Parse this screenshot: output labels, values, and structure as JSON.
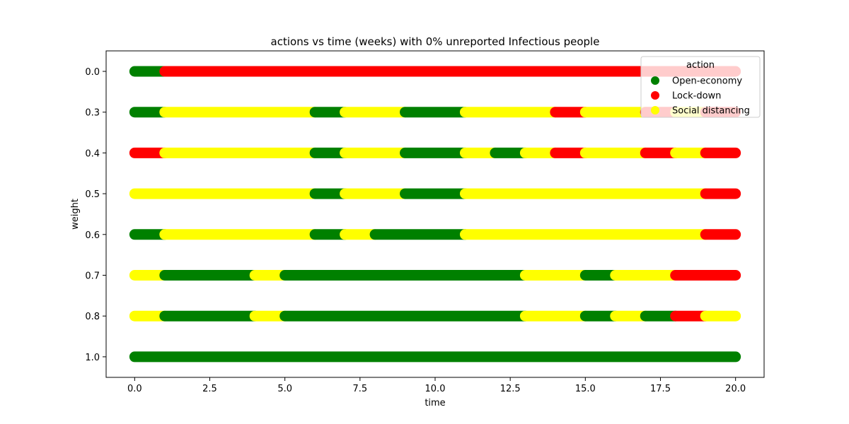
{
  "chart_data": {
    "type": "scatter",
    "title": "actions vs time (weeks) with 0% unreported Infectious people",
    "xlabel": "time",
    "ylabel": "weight",
    "xlim": [
      -0.95,
      20.95
    ],
    "x_ticks": [
      0.0,
      2.5,
      5.0,
      7.5,
      10.0,
      12.5,
      15.0,
      17.5,
      20.0
    ],
    "x_tick_labels": [
      "0.0",
      "2.5",
      "5.0",
      "7.5",
      "10.0",
      "12.5",
      "15.0",
      "17.5",
      "20.0"
    ],
    "y_categories": [
      "0.0",
      "0.3",
      "0.4",
      "0.5",
      "0.6",
      "0.7",
      "0.8",
      "1.0"
    ],
    "grid": false,
    "legend": {
      "title": "action",
      "placement": "top-right",
      "entries": [
        {
          "name": "Open-economy",
          "color": "#008000"
        },
        {
          "name": "Lock-down",
          "color": "#ff0000"
        },
        {
          "name": "Social distancing",
          "color": "#ffff00"
        }
      ]
    },
    "series": [
      {
        "name": "Open-economy",
        "color": "#008000"
      },
      {
        "name": "Lock-down",
        "color": "#ff0000"
      },
      {
        "name": "Social distancing",
        "color": "#ffff00"
      }
    ],
    "segments": [
      {
        "weight": "0.0",
        "action": "Open-economy",
        "x_start": 0,
        "x_end": 1
      },
      {
        "weight": "0.0",
        "action": "Lock-down",
        "x_start": 1,
        "x_end": 20
      },
      {
        "weight": "0.3",
        "action": "Open-economy",
        "x_start": 0,
        "x_end": 1
      },
      {
        "weight": "0.3",
        "action": "Social distancing",
        "x_start": 1,
        "x_end": 6
      },
      {
        "weight": "0.3",
        "action": "Open-economy",
        "x_start": 6,
        "x_end": 7
      },
      {
        "weight": "0.3",
        "action": "Social distancing",
        "x_start": 7,
        "x_end": 9
      },
      {
        "weight": "0.3",
        "action": "Open-economy",
        "x_start": 9,
        "x_end": 11
      },
      {
        "weight": "0.3",
        "action": "Social distancing",
        "x_start": 11,
        "x_end": 14
      },
      {
        "weight": "0.3",
        "action": "Lock-down",
        "x_start": 14,
        "x_end": 15
      },
      {
        "weight": "0.3",
        "action": "Social distancing",
        "x_start": 15,
        "x_end": 17
      },
      {
        "weight": "0.3",
        "action": "Lock-down",
        "x_start": 17,
        "x_end": 18
      },
      {
        "weight": "0.3",
        "action": "Social distancing",
        "x_start": 18,
        "x_end": 19
      },
      {
        "weight": "0.3",
        "action": "Lock-down",
        "x_start": 19,
        "x_end": 20
      },
      {
        "weight": "0.4",
        "action": "Lock-down",
        "x_start": 0,
        "x_end": 1
      },
      {
        "weight": "0.4",
        "action": "Social distancing",
        "x_start": 1,
        "x_end": 6
      },
      {
        "weight": "0.4",
        "action": "Open-economy",
        "x_start": 6,
        "x_end": 7
      },
      {
        "weight": "0.4",
        "action": "Social distancing",
        "x_start": 7,
        "x_end": 9
      },
      {
        "weight": "0.4",
        "action": "Open-economy",
        "x_start": 9,
        "x_end": 11
      },
      {
        "weight": "0.4",
        "action": "Social distancing",
        "x_start": 11,
        "x_end": 12
      },
      {
        "weight": "0.4",
        "action": "Open-economy",
        "x_start": 12,
        "x_end": 13
      },
      {
        "weight": "0.4",
        "action": "Social distancing",
        "x_start": 13,
        "x_end": 14
      },
      {
        "weight": "0.4",
        "action": "Lock-down",
        "x_start": 14,
        "x_end": 15
      },
      {
        "weight": "0.4",
        "action": "Social distancing",
        "x_start": 15,
        "x_end": 17
      },
      {
        "weight": "0.4",
        "action": "Lock-down",
        "x_start": 17,
        "x_end": 18
      },
      {
        "weight": "0.4",
        "action": "Social distancing",
        "x_start": 18,
        "x_end": 19
      },
      {
        "weight": "0.4",
        "action": "Lock-down",
        "x_start": 19,
        "x_end": 20
      },
      {
        "weight": "0.5",
        "action": "Social distancing",
        "x_start": 0,
        "x_end": 6
      },
      {
        "weight": "0.5",
        "action": "Open-economy",
        "x_start": 6,
        "x_end": 7
      },
      {
        "weight": "0.5",
        "action": "Social distancing",
        "x_start": 7,
        "x_end": 9
      },
      {
        "weight": "0.5",
        "action": "Open-economy",
        "x_start": 9,
        "x_end": 11
      },
      {
        "weight": "0.5",
        "action": "Social distancing",
        "x_start": 11,
        "x_end": 19
      },
      {
        "weight": "0.5",
        "action": "Lock-down",
        "x_start": 19,
        "x_end": 20
      },
      {
        "weight": "0.6",
        "action": "Open-economy",
        "x_start": 0,
        "x_end": 1
      },
      {
        "weight": "0.6",
        "action": "Social distancing",
        "x_start": 1,
        "x_end": 6
      },
      {
        "weight": "0.6",
        "action": "Open-economy",
        "x_start": 6,
        "x_end": 7
      },
      {
        "weight": "0.6",
        "action": "Social distancing",
        "x_start": 7,
        "x_end": 8
      },
      {
        "weight": "0.6",
        "action": "Open-economy",
        "x_start": 8,
        "x_end": 11
      },
      {
        "weight": "0.6",
        "action": "Social distancing",
        "x_start": 11,
        "x_end": 19
      },
      {
        "weight": "0.6",
        "action": "Lock-down",
        "x_start": 19,
        "x_end": 20
      },
      {
        "weight": "0.7",
        "action": "Social distancing",
        "x_start": 0,
        "x_end": 1
      },
      {
        "weight": "0.7",
        "action": "Open-economy",
        "x_start": 1,
        "x_end": 4
      },
      {
        "weight": "0.7",
        "action": "Social distancing",
        "x_start": 4,
        "x_end": 5
      },
      {
        "weight": "0.7",
        "action": "Open-economy",
        "x_start": 5,
        "x_end": 13
      },
      {
        "weight": "0.7",
        "action": "Social distancing",
        "x_start": 13,
        "x_end": 15
      },
      {
        "weight": "0.7",
        "action": "Open-economy",
        "x_start": 15,
        "x_end": 16
      },
      {
        "weight": "0.7",
        "action": "Social distancing",
        "x_start": 16,
        "x_end": 18
      },
      {
        "weight": "0.7",
        "action": "Lock-down",
        "x_start": 18,
        "x_end": 20
      },
      {
        "weight": "0.8",
        "action": "Social distancing",
        "x_start": 0,
        "x_end": 1
      },
      {
        "weight": "0.8",
        "action": "Open-economy",
        "x_start": 1,
        "x_end": 4
      },
      {
        "weight": "0.8",
        "action": "Social distancing",
        "x_start": 4,
        "x_end": 5
      },
      {
        "weight": "0.8",
        "action": "Open-economy",
        "x_start": 5,
        "x_end": 13
      },
      {
        "weight": "0.8",
        "action": "Social distancing",
        "x_start": 13,
        "x_end": 15
      },
      {
        "weight": "0.8",
        "action": "Open-economy",
        "x_start": 15,
        "x_end": 16
      },
      {
        "weight": "0.8",
        "action": "Social distancing",
        "x_start": 16,
        "x_end": 17
      },
      {
        "weight": "0.8",
        "action": "Open-economy",
        "x_start": 17,
        "x_end": 18
      },
      {
        "weight": "0.8",
        "action": "Lock-down",
        "x_start": 18,
        "x_end": 19
      },
      {
        "weight": "0.8",
        "action": "Social distancing",
        "x_start": 19,
        "x_end": 20
      },
      {
        "weight": "1.0",
        "action": "Open-economy",
        "x_start": 0,
        "x_end": 20
      }
    ]
  }
}
